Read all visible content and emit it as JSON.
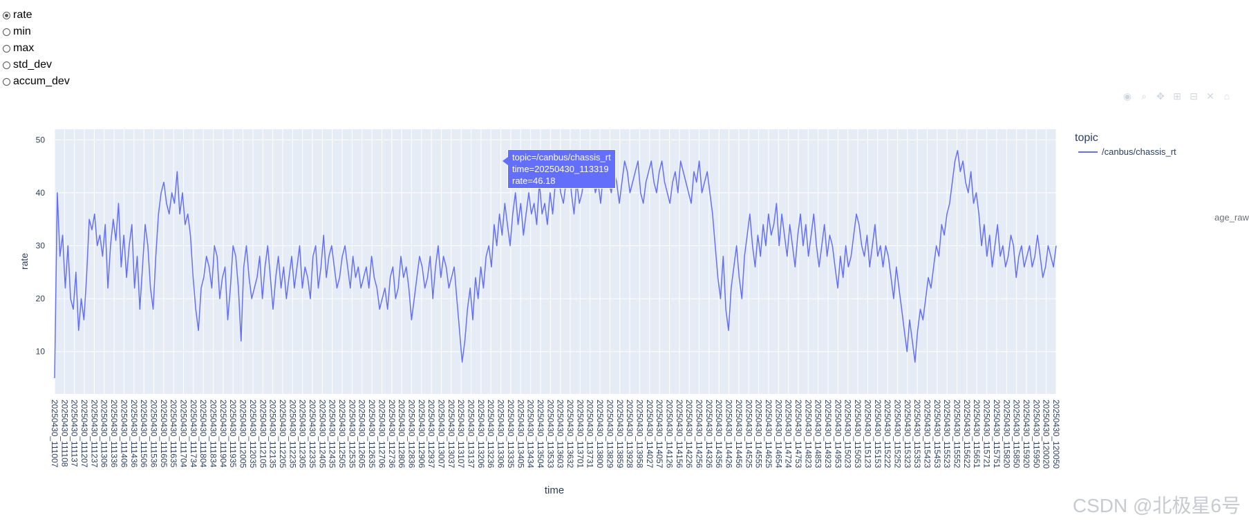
{
  "radio_options": [
    {
      "label": "rate",
      "checked": true
    },
    {
      "label": "min",
      "checked": false
    },
    {
      "label": "max",
      "checked": false
    },
    {
      "label": "std_dev",
      "checked": false
    },
    {
      "label": "accum_dev",
      "checked": false
    }
  ],
  "modebar_icons": [
    "camera-icon",
    "zoom-icon",
    "pan-icon",
    "zoom-in-icon",
    "zoom-out-icon",
    "autoscale-icon",
    "home-icon"
  ],
  "watermark": "CSDN @北极星6号",
  "ghost_label": "age_raw",
  "chart_data": {
    "type": "line",
    "title": "",
    "xlabel": "time",
    "ylabel": "rate",
    "ylim": [
      2,
      52
    ],
    "yticks": [
      10,
      20,
      30,
      40,
      50
    ],
    "grid": true,
    "legend": {
      "title": "topic",
      "placement": "right"
    },
    "colors": {
      "line": "#636efa",
      "plot_bg": "#e5ecf6",
      "axis_text": "#2a3f5f"
    },
    "x_ticks": [
      "20250430_111007",
      "20250430_111108",
      "20250430_111137",
      "20250430_111207",
      "20250430_111237",
      "20250430_111306",
      "20250430_111336",
      "20250430_111406",
      "20250430_111436",
      "20250430_111506",
      "20250430_111536",
      "20250430_111605",
      "20250430_111635",
      "20250430_111704",
      "20250430_111734",
      "20250430_111804",
      "20250430_111834",
      "20250430_111904",
      "20250430_111935",
      "20250430_112005",
      "20250430_112035",
      "20250430_112105",
      "20250430_112135",
      "20250430_112205",
      "20250430_112235",
      "20250430_112305",
      "20250430_112335",
      "20250430_112405",
      "20250430_112435",
      "20250430_112505",
      "20250430_112535",
      "20250430_112605",
      "20250430_112635",
      "20250430_112706",
      "20250430_112736",
      "20250430_112806",
      "20250430_112836",
      "20250430_112906",
      "20250430_112937",
      "20250430_113007",
      "20250430_113037",
      "20250430_113107",
      "20250430_113137",
      "20250430_113206",
      "20250430_113236",
      "20250430_113306",
      "20250430_113335",
      "20250430_113405",
      "20250430_113434",
      "20250430_113504",
      "20250430_113533",
      "20250430_113603",
      "20250430_113632",
      "20250430_113701",
      "20250430_113731",
      "20250430_113800",
      "20250430_113829",
      "20250430_113859",
      "20250430_113928",
      "20250430_113958",
      "20250430_114027",
      "20250430_114057",
      "20250430_114126",
      "20250430_114156",
      "20250430_114226",
      "20250430_114256",
      "20250430_114326",
      "20250430_114356",
      "20250430_114426",
      "20250430_114456",
      "20250430_114525",
      "20250430_114555",
      "20250430_114625",
      "20250430_114654",
      "20250430_114724",
      "20250430_114753",
      "20250430_114823",
      "20250430_114853",
      "20250430_114923",
      "20250430_114953",
      "20250430_115023",
      "20250430_115053",
      "20250430_115123",
      "20250430_115153",
      "20250430_115222",
      "20250430_115252",
      "20250430_115323",
      "20250430_115353",
      "20250430_115423",
      "20250430_115453",
      "20250430_115523",
      "20250430_115552",
      "20250430_115622",
      "20250430_115651",
      "20250430_115721",
      "20250430_115751",
      "20250430_115820",
      "20250430_115850",
      "20250430_115920",
      "20250430_115950",
      "20250430_120020",
      "20250430_120050"
    ],
    "series": [
      {
        "name": "/canbus/chassis_rt",
        "values": [
          5,
          40,
          28,
          32,
          22,
          30,
          20,
          18,
          25,
          14,
          20,
          16,
          24,
          35,
          33,
          36,
          30,
          32,
          28,
          34,
          22,
          30,
          35,
          31,
          38,
          26,
          32,
          24,
          30,
          34,
          22,
          28,
          18,
          26,
          34,
          30,
          22,
          18,
          28,
          36,
          40,
          42,
          38,
          36,
          40,
          38,
          44,
          36,
          40,
          34,
          36,
          32,
          24,
          18,
          14,
          22,
          24,
          28,
          26,
          22,
          30,
          28,
          20,
          24,
          26,
          16,
          22,
          30,
          28,
          22,
          12,
          26,
          30,
          24,
          20,
          22,
          24,
          28,
          20,
          26,
          30,
          24,
          18,
          24,
          28,
          22,
          26,
          20,
          24,
          28,
          22,
          26,
          30,
          22,
          26,
          24,
          20,
          28,
          30,
          22,
          26,
          32,
          24,
          28,
          30,
          26,
          22,
          24,
          28,
          30,
          26,
          22,
          28,
          24,
          26,
          22,
          24,
          26,
          22,
          28,
          24,
          22,
          18,
          20,
          22,
          18,
          24,
          26,
          20,
          22,
          28,
          24,
          26,
          22,
          16,
          20,
          24,
          28,
          26,
          22,
          24,
          28,
          20,
          26,
          30,
          24,
          28,
          26,
          22,
          24,
          26,
          20,
          14,
          8,
          12,
          18,
          22,
          16,
          24,
          20,
          26,
          22,
          28,
          30,
          26,
          34,
          30,
          36,
          32,
          38,
          34,
          30,
          36,
          40,
          34,
          38,
          32,
          36,
          40,
          36,
          38,
          34,
          42,
          36,
          38,
          34,
          40,
          36,
          42,
          44,
          40,
          38,
          42,
          46,
          40,
          36,
          42,
          38,
          40,
          44,
          42,
          46,
          44,
          40,
          42,
          38,
          44,
          46,
          42,
          40,
          44,
          42,
          38,
          42,
          46,
          44,
          40,
          42,
          44,
          46,
          40,
          38,
          42,
          44,
          46,
          42,
          40,
          44,
          46,
          42,
          40,
          38,
          42,
          44,
          40,
          46,
          44,
          42,
          40,
          38,
          44,
          42,
          46,
          40,
          42,
          44,
          40,
          36,
          30,
          24,
          20,
          28,
          18,
          14,
          22,
          26,
          30,
          24,
          20,
          28,
          32,
          36,
          30,
          26,
          32,
          28,
          34,
          30,
          36,
          32,
          34,
          38,
          30,
          36,
          32,
          28,
          34,
          30,
          26,
          32,
          36,
          30,
          34,
          28,
          32,
          36,
          30,
          26,
          30,
          34,
          28,
          32,
          30,
          26,
          22,
          28,
          24,
          30,
          26,
          28,
          32,
          36,
          34,
          30,
          28,
          32,
          26,
          30,
          34,
          28,
          30,
          26,
          30,
          28,
          24,
          20,
          26,
          22,
          18,
          14,
          10,
          16,
          12,
          8,
          14,
          18,
          16,
          20,
          24,
          22,
          26,
          30,
          28,
          34,
          32,
          36,
          38,
          42,
          46,
          48,
          44,
          46,
          42,
          40,
          44,
          38,
          40,
          36,
          30,
          34,
          28,
          32,
          26,
          30,
          34,
          28,
          30,
          26,
          28,
          32,
          30,
          24,
          28,
          30,
          26,
          28,
          30,
          26,
          28,
          32,
          28,
          24,
          26,
          30,
          28,
          26,
          30
        ]
      }
    ],
    "tooltip": {
      "line1": "topic=/canbus/chassis_rt",
      "line2": "time=20250430_113319",
      "line3": "rate=46.18"
    }
  }
}
